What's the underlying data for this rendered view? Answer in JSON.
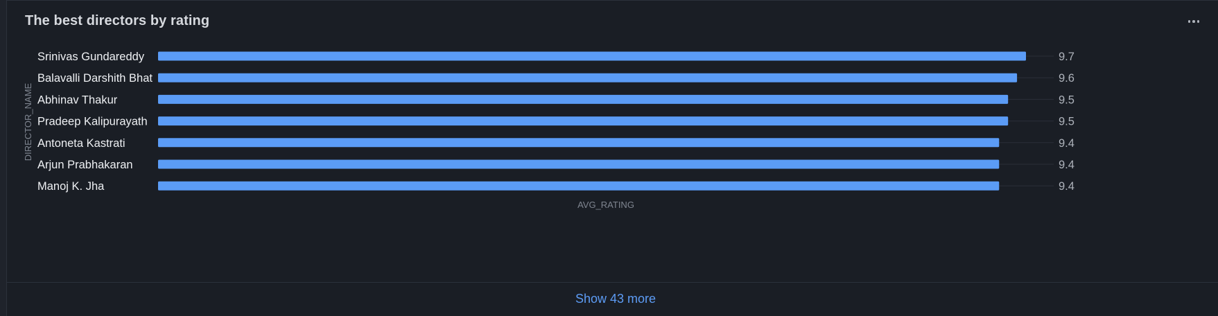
{
  "card": {
    "title": "The best directors by rating",
    "menu_icon": "more-horizontal-icon",
    "show_more_label": "Show 43 more"
  },
  "colors": {
    "bar": "#5b9cf6",
    "label": "#eef0f3",
    "value": "#aeb3bb",
    "axis_title": "#7f8590",
    "grid": "#2a2f38",
    "link": "#5d9cf5"
  },
  "chart_data": {
    "type": "bar",
    "orientation": "horizontal",
    "title": "The best directors by rating",
    "xlabel": "AVG_RATING",
    "ylabel": "DIRECTOR_NAME",
    "categories": [
      "Srinivas Gundareddy",
      "Balavalli Darshith Bhat",
      "Abhinav Thakur",
      "Pradeep Kalipurayath",
      "Antoneta Kastrati",
      "Arjun Prabhakaran",
      "Manoj K. Jha"
    ],
    "values": [
      9.7,
      9.6,
      9.5,
      9.5,
      9.4,
      9.4,
      9.4
    ],
    "value_labels": [
      "9.7",
      "9.6",
      "9.5",
      "9.5",
      "9.4",
      "9.4",
      "9.4"
    ],
    "xlim": [
      0,
      9.7
    ],
    "grid": true,
    "legend": "none"
  }
}
